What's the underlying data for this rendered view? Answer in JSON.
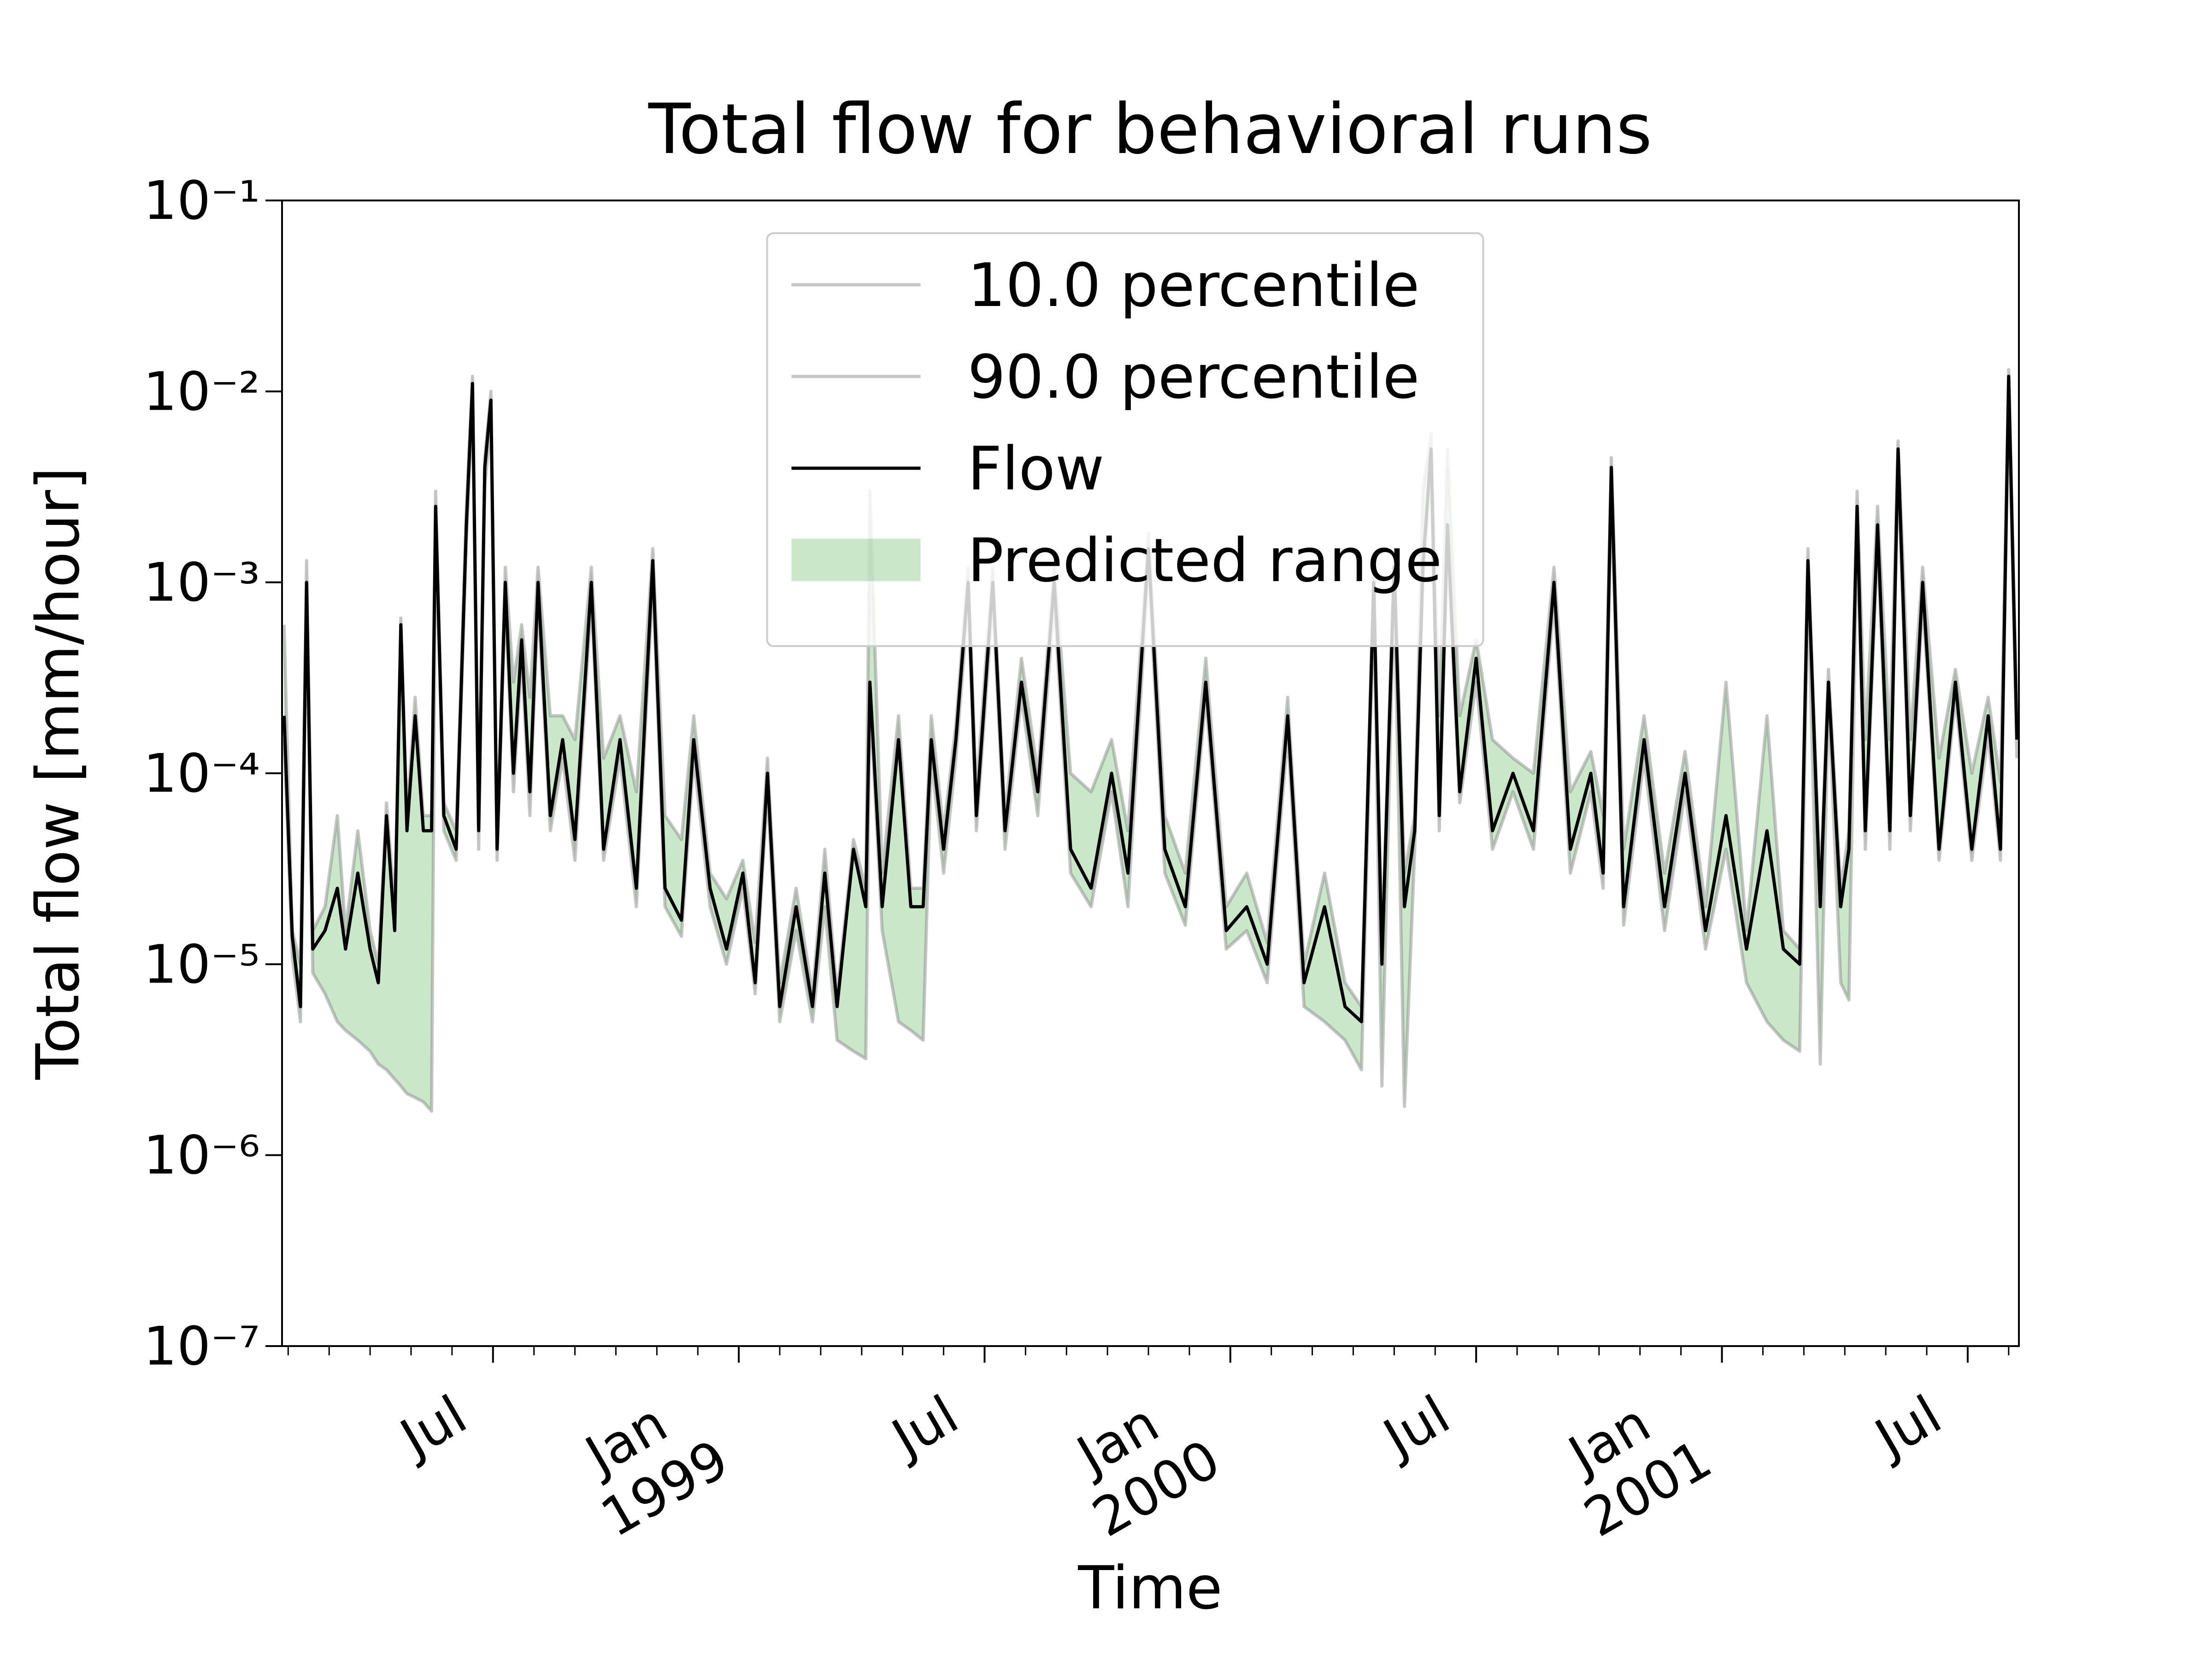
{
  "chart_data": {
    "type": "line",
    "title": "Total flow for behavioral runs",
    "x_label": "Time",
    "y_label": "Total flow [mm/hour]",
    "x": [
      0.9,
      1.1,
      1.3,
      1.45,
      1.6,
      1.9,
      2.2,
      2.4,
      2.7,
      3.0,
      3.2,
      3.4,
      3.6,
      3.75,
      3.9,
      4.1,
      4.3,
      4.5,
      4.6,
      4.8,
      5.1,
      5.35,
      5.5,
      5.65,
      5.8,
      5.95,
      6.1,
      6.3,
      6.5,
      6.7,
      6.9,
      7.1,
      7.4,
      7.7,
      8.0,
      8.4,
      8.7,
      9.1,
      9.5,
      9.9,
      10.2,
      10.6,
      10.9,
      11.3,
      11.7,
      12.1,
      12.4,
      12.7,
      13.0,
      13.4,
      13.8,
      14.1,
      14.4,
      14.8,
      15.1,
      15.2,
      15.5,
      15.9,
      16.2,
      16.5,
      16.7,
      17.0,
      17.3,
      17.6,
      17.8,
      18.2,
      18.5,
      18.9,
      19.3,
      19.7,
      20.1,
      20.6,
      21.1,
      21.5,
      22.0,
      22.4,
      22.9,
      23.4,
      23.9,
      24.4,
      24.9,
      25.4,
      25.8,
      26.3,
      26.8,
      27.2,
      27.5,
      27.7,
      28.0,
      28.25,
      28.5,
      28.7,
      28.9,
      29.1,
      29.3,
      29.6,
      30.0,
      30.4,
      30.9,
      31.4,
      31.9,
      32.3,
      32.8,
      33.1,
      33.3,
      33.6,
      34.1,
      34.6,
      35.1,
      35.6,
      36.1,
      36.6,
      37.1,
      37.5,
      37.9,
      38.1,
      38.4,
      38.6,
      38.9,
      39.1,
      39.3,
      39.5,
      39.8,
      40.1,
      40.3,
      40.6,
      40.9,
      41.3,
      41.7,
      42.1,
      42.5,
      42.8,
      43.0,
      43.2
    ],
    "series": [
      {
        "name": "10.0 percentile",
        "color": "#808080",
        "alpha": 0.45,
        "values": [
          0.00015,
          1.1e-05,
          5e-06,
          0.0008,
          9e-06,
          7e-06,
          5e-06,
          4.5e-06,
          4e-06,
          3.5e-06,
          3e-06,
          2.8e-06,
          2.5e-06,
          2.3e-06,
          2.1e-06,
          2e-06,
          1.9e-06,
          1.7e-06,
          0.002,
          5e-05,
          3.5e-05,
          0.0016,
          0.009,
          4e-05,
          0.0032,
          0.007,
          3.5e-05,
          0.0008,
          8e-05,
          0.0004,
          6e-05,
          0.0008,
          5e-05,
          0.00012,
          3.5e-05,
          0.0008,
          3.5e-05,
          0.00012,
          2e-05,
          0.001,
          2e-05,
          1.4e-05,
          0.00012,
          2e-05,
          1e-05,
          2.5e-05,
          7e-06,
          8e-05,
          5e-06,
          1.5e-05,
          5e-06,
          2e-05,
          4e-06,
          3.5e-06,
          3.2e-06,
          0.00025,
          1.5e-05,
          5e-06,
          4.5e-06,
          4e-06,
          0.00012,
          3e-05,
          0.00012,
          0.0008,
          5e-05,
          0.0008,
          4e-05,
          0.00025,
          6e-05,
          0.0008,
          3e-05,
          2e-05,
          8e-05,
          2e-05,
          0.0012,
          3e-05,
          1.6e-05,
          0.00025,
          1.2e-05,
          1.5e-05,
          8e-06,
          0.00016,
          6e-06,
          5e-06,
          4e-06,
          2.8e-06,
          0.0008,
          2.3e-06,
          0.001,
          1.8e-06,
          4e-05,
          0.001,
          0.004,
          5e-05,
          0.0016,
          7e-05,
          0.0003,
          4e-05,
          8e-05,
          4e-05,
          0.0008,
          3e-05,
          8e-05,
          2.5e-05,
          0.003,
          1.6e-05,
          0.00012,
          1.5e-05,
          8e-05,
          1.2e-05,
          4e-05,
          8e-06,
          5e-06,
          4e-06,
          3.5e-06,
          0.001,
          3e-06,
          0.00025,
          8e-06,
          6.5e-06,
          0.002,
          4e-05,
          0.0016,
          4e-05,
          0.004,
          5e-05,
          0.0008,
          3.5e-05,
          0.00025,
          3.5e-05,
          0.00016,
          3.5e-05,
          0.01,
          0.00012
        ]
      },
      {
        "name": "90.0 percentile",
        "color": "#808080",
        "alpha": 0.45,
        "values": [
          0.0006,
          1.5e-05,
          1e-05,
          0.0013,
          1.5e-05,
          2e-05,
          6e-05,
          1.5e-05,
          5e-05,
          1.5e-05,
          1e-05,
          7e-05,
          2e-05,
          0.00065,
          6e-05,
          0.00025,
          6e-05,
          6e-05,
          0.003,
          7e-05,
          5e-05,
          0.0025,
          0.012,
          6e-05,
          0.0045,
          0.01,
          4.5e-05,
          0.0012,
          0.0003,
          0.0006,
          0.00025,
          0.0012,
          0.0002,
          0.0002,
          0.00015,
          0.0012,
          0.00012,
          0.0002,
          8e-05,
          0.0015,
          6e-05,
          4.5e-05,
          0.0002,
          3e-05,
          2.2e-05,
          3.5e-05,
          1.3e-05,
          0.00012,
          8e-06,
          2.5e-05,
          7e-06,
          4e-05,
          7e-06,
          4.5e-05,
          2.5e-05,
          0.003,
          3e-05,
          0.0002,
          2.5e-05,
          2.5e-05,
          0.0002,
          5e-05,
          0.00018,
          0.0012,
          8e-05,
          0.0012,
          6e-05,
          0.0004,
          0.0001,
          0.0012,
          0.0001,
          8e-05,
          0.00015,
          5e-05,
          0.0018,
          6e-05,
          3e-05,
          0.0004,
          2e-05,
          3e-05,
          1.3e-05,
          0.00025,
          1e-05,
          3e-05,
          8e-06,
          6e-06,
          0.0012,
          1.2e-05,
          0.0015,
          3e-05,
          6e-05,
          0.003,
          0.006,
          0.0002,
          0.005,
          0.0002,
          0.0005,
          0.00015,
          0.00012,
          0.0001,
          0.0012,
          8e-05,
          0.00013,
          6e-05,
          0.0045,
          4e-05,
          0.0002,
          3e-05,
          0.00013,
          2e-05,
          0.0003,
          1.5e-05,
          0.0002,
          1.5e-05,
          1.2e-05,
          0.0015,
          2.5e-05,
          0.00035,
          2.5e-05,
          5e-05,
          0.003,
          0.00015,
          0.0025,
          0.00015,
          0.0055,
          0.00015,
          0.0012,
          0.00012,
          0.00035,
          0.0001,
          0.00025,
          9e-05,
          0.013,
          0.0002
        ]
      },
      {
        "name": "Flow",
        "color": "#000000",
        "alpha": 1,
        "values": [
          0.0002,
          1.4e-05,
          6e-06,
          0.001,
          1.2e-05,
          1.5e-05,
          2.5e-05,
          1.2e-05,
          3e-05,
          1.2e-05,
          8e-06,
          6e-05,
          1.5e-05,
          0.0006,
          5e-05,
          0.0002,
          5e-05,
          5e-05,
          0.0025,
          6e-05,
          4e-05,
          0.002,
          0.011,
          5e-05,
          0.004,
          0.009,
          4e-05,
          0.001,
          0.0001,
          0.0005,
          8e-05,
          0.001,
          6e-05,
          0.00015,
          4.5e-05,
          0.001,
          4e-05,
          0.00015,
          2.5e-05,
          0.0013,
          2.5e-05,
          1.7e-05,
          0.00015,
          2.5e-05,
          1.2e-05,
          3e-05,
          8e-06,
          0.0001,
          6e-06,
          2e-05,
          6e-06,
          3e-05,
          6e-06,
          4e-05,
          2e-05,
          0.0003,
          2e-05,
          0.00015,
          2e-05,
          2e-05,
          0.00015,
          4e-05,
          0.00015,
          0.001,
          6e-05,
          0.001,
          5e-05,
          0.0003,
          8e-05,
          0.001,
          4e-05,
          2.5e-05,
          0.0001,
          3e-05,
          0.0015,
          4e-05,
          2e-05,
          0.0003,
          1.5e-05,
          2e-05,
          1e-05,
          0.0002,
          8e-06,
          2e-05,
          6e-06,
          5e-06,
          0.001,
          1e-05,
          0.0012,
          2e-05,
          5e-05,
          0.0012,
          0.005,
          6e-05,
          0.002,
          8e-05,
          0.0004,
          5e-05,
          0.0001,
          5e-05,
          0.001,
          4e-05,
          0.0001,
          3e-05,
          0.004,
          2e-05,
          0.00015,
          2e-05,
          0.0001,
          1.5e-05,
          6e-05,
          1.2e-05,
          5e-05,
          1.2e-05,
          1e-05,
          0.0013,
          2e-05,
          0.0003,
          2e-05,
          4e-05,
          0.0025,
          5e-05,
          0.002,
          5e-05,
          0.005,
          6e-05,
          0.001,
          4e-05,
          0.0003,
          4e-05,
          0.0002,
          4e-05,
          0.012,
          0.00015
        ]
      }
    ],
    "fill_between": {
      "name": "Predicted range",
      "color": "#2ca02c",
      "alpha": 0.25,
      "series": [
        0,
        1
      ]
    },
    "xlim": [
      0.85,
      43.25
    ],
    "xticks": [
      {
        "value": 6,
        "label": "Jul"
      },
      {
        "value": 12,
        "label": "Jan\n1999"
      },
      {
        "value": 18,
        "label": "Jul"
      },
      {
        "value": 24,
        "label": "Jan\n2000"
      },
      {
        "value": 30,
        "label": "Jul"
      },
      {
        "value": 36,
        "label": "Jan\n2001"
      },
      {
        "value": 42,
        "label": "Jul"
      }
    ],
    "xminorticks": [
      1,
      2,
      3,
      4,
      5,
      7,
      8,
      9,
      10,
      11,
      13,
      14,
      15,
      16,
      17,
      19,
      20,
      21,
      22,
      23,
      25,
      26,
      27,
      28,
      29,
      31,
      32,
      33,
      34,
      35,
      37,
      38,
      39,
      40,
      41,
      43
    ],
    "ylim": [
      1e-07,
      0.1
    ],
    "y_scale": "log",
    "yticks": [
      {
        "value": 1e-07,
        "label": "10⁻⁷"
      },
      {
        "value": 1e-06,
        "label": "10⁻⁶"
      },
      {
        "value": 1e-05,
        "label": "10⁻⁵"
      },
      {
        "value": 0.0001,
        "label": "10⁻⁴"
      },
      {
        "value": 0.001,
        "label": "10⁻³"
      },
      {
        "value": 0.01,
        "label": "10⁻²"
      },
      {
        "value": 0.1,
        "label": "10⁻¹"
      }
    ],
    "legend_position": "upper center"
  }
}
